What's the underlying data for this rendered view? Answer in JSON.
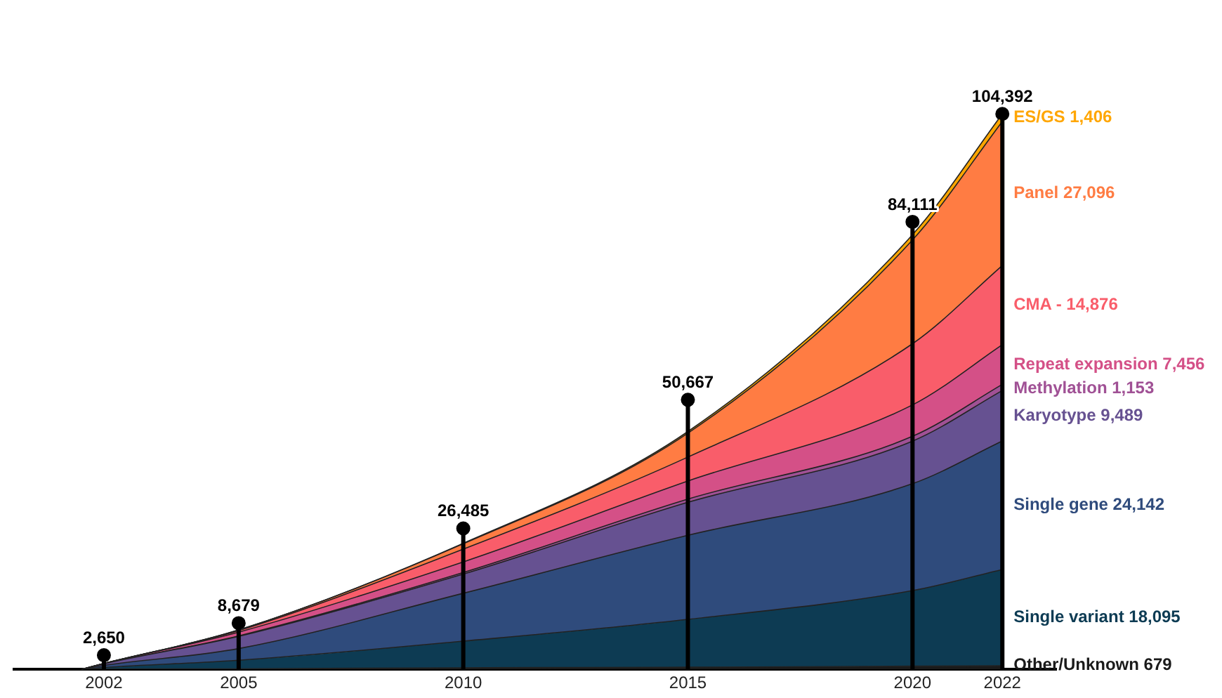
{
  "chart_data": {
    "type": "area",
    "stacked": true,
    "x": [
      2001.5,
      2002,
      2005,
      2010,
      2015,
      2020,
      2022
    ],
    "xlim": [
      2000,
      2023.2
    ],
    "xticks": [
      2002,
      2005,
      2010,
      2015,
      2020,
      2022
    ],
    "tick_labels": "x",
    "grid": false,
    "legend": false,
    "series": [
      {
        "name": "Other/Unknown",
        "color": "#1a1a1a",
        "values": [
          0,
          50,
          100,
          300,
          400,
          600,
          679
        ],
        "value_labels": [
          null,
          null,
          null,
          null,
          null,
          null,
          "679"
        ]
      },
      {
        "name": "Single variant",
        "color": "#0d3b53",
        "values": [
          0,
          300,
          1600,
          5000,
          9000,
          14200,
          18095
        ],
        "value_labels": [
          null,
          null,
          null,
          null,
          null,
          null,
          "18,095"
        ]
      },
      {
        "name": "Single gene",
        "color": "#2f4b7c",
        "values": [
          0,
          400,
          2200,
          9000,
          15800,
          20100,
          24142
        ],
        "value_labels": [
          null,
          null,
          null,
          null,
          null,
          null,
          "24,142"
        ]
      },
      {
        "name": "Karyotype",
        "color": "#665191",
        "values": [
          0,
          300,
          2300,
          3600,
          6200,
          8000,
          9489
        ],
        "value_labels": [
          null,
          null,
          null,
          null,
          null,
          null,
          "9,489"
        ]
      },
      {
        "name": "Methylation",
        "color": "#a05195",
        "values": [
          0,
          0,
          100,
          300,
          600,
          900,
          1153
        ],
        "value_labels": [
          null,
          null,
          null,
          null,
          null,
          null,
          "1,153"
        ]
      },
      {
        "name": "Repeat expansion",
        "color": "#d45087",
        "values": [
          0,
          50,
          700,
          2000,
          3400,
          5900,
          7456
        ],
        "value_labels": [
          null,
          null,
          null,
          null,
          null,
          null,
          "7,456"
        ]
      },
      {
        "name": "CMA -",
        "color": "#f95d6a",
        "values": [
          0,
          0,
          300,
          2400,
          4500,
          11500,
          14876
        ],
        "value_labels": [
          null,
          null,
          null,
          null,
          null,
          null,
          "14,876"
        ]
      },
      {
        "name": "Panel",
        "color": "#ff7c43",
        "values": [
          0,
          0,
          100,
          1000,
          4500,
          19500,
          27096
        ],
        "value_labels": [
          null,
          null,
          null,
          null,
          null,
          null,
          "27,096"
        ]
      },
      {
        "name": "ES/GS",
        "color": "#ffa600",
        "values": [
          0,
          0,
          0,
          100,
          300,
          1000,
          1406
        ],
        "value_labels": [
          null,
          null,
          null,
          null,
          null,
          null,
          "1,406"
        ]
      },
      {
        "type": "lollipop",
        "color": "#000000",
        "x": [
          2002,
          2005,
          2010,
          2015,
          2020,
          2022
        ],
        "values": [
          2650,
          8679,
          26485,
          50667,
          84111,
          104392
        ],
        "value_labels": [
          "2,650",
          "8,679",
          "26,485",
          "50,667",
          "84,111",
          "104,392"
        ]
      }
    ]
  }
}
